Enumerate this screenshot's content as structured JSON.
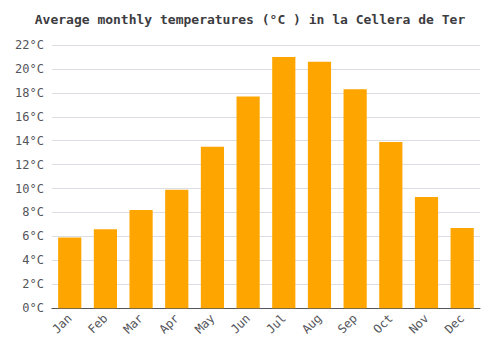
{
  "chart_data": {
    "type": "bar",
    "title": "Average monthly temperatures (°C ) in la Cellera de Ter",
    "categories": [
      "Jan",
      "Feb",
      "Mar",
      "Apr",
      "May",
      "Jun",
      "Jul",
      "Aug",
      "Sep",
      "Oct",
      "Nov",
      "Dec"
    ],
    "values": [
      5.9,
      6.6,
      8.2,
      9.9,
      13.5,
      17.7,
      21.0,
      20.6,
      18.3,
      13.9,
      9.3,
      6.7
    ],
    "color": "#FFA500",
    "ylim": [
      0,
      22
    ],
    "yticks": [
      {
        "value": 0,
        "label": "0°C"
      },
      {
        "value": 2,
        "label": "2°C"
      },
      {
        "value": 4,
        "label": "4°C"
      },
      {
        "value": 6,
        "label": "6°C"
      },
      {
        "value": 8,
        "label": "8°C"
      },
      {
        "value": 10,
        "label": "10°C"
      },
      {
        "value": 12,
        "label": "12°C"
      },
      {
        "value": 14,
        "label": "14°C"
      },
      {
        "value": 16,
        "label": "16°C"
      },
      {
        "value": 18,
        "label": "18°C"
      },
      {
        "value": 20,
        "label": "20°C"
      },
      {
        "value": 22,
        "label": "22°C"
      }
    ],
    "grid": true
  }
}
